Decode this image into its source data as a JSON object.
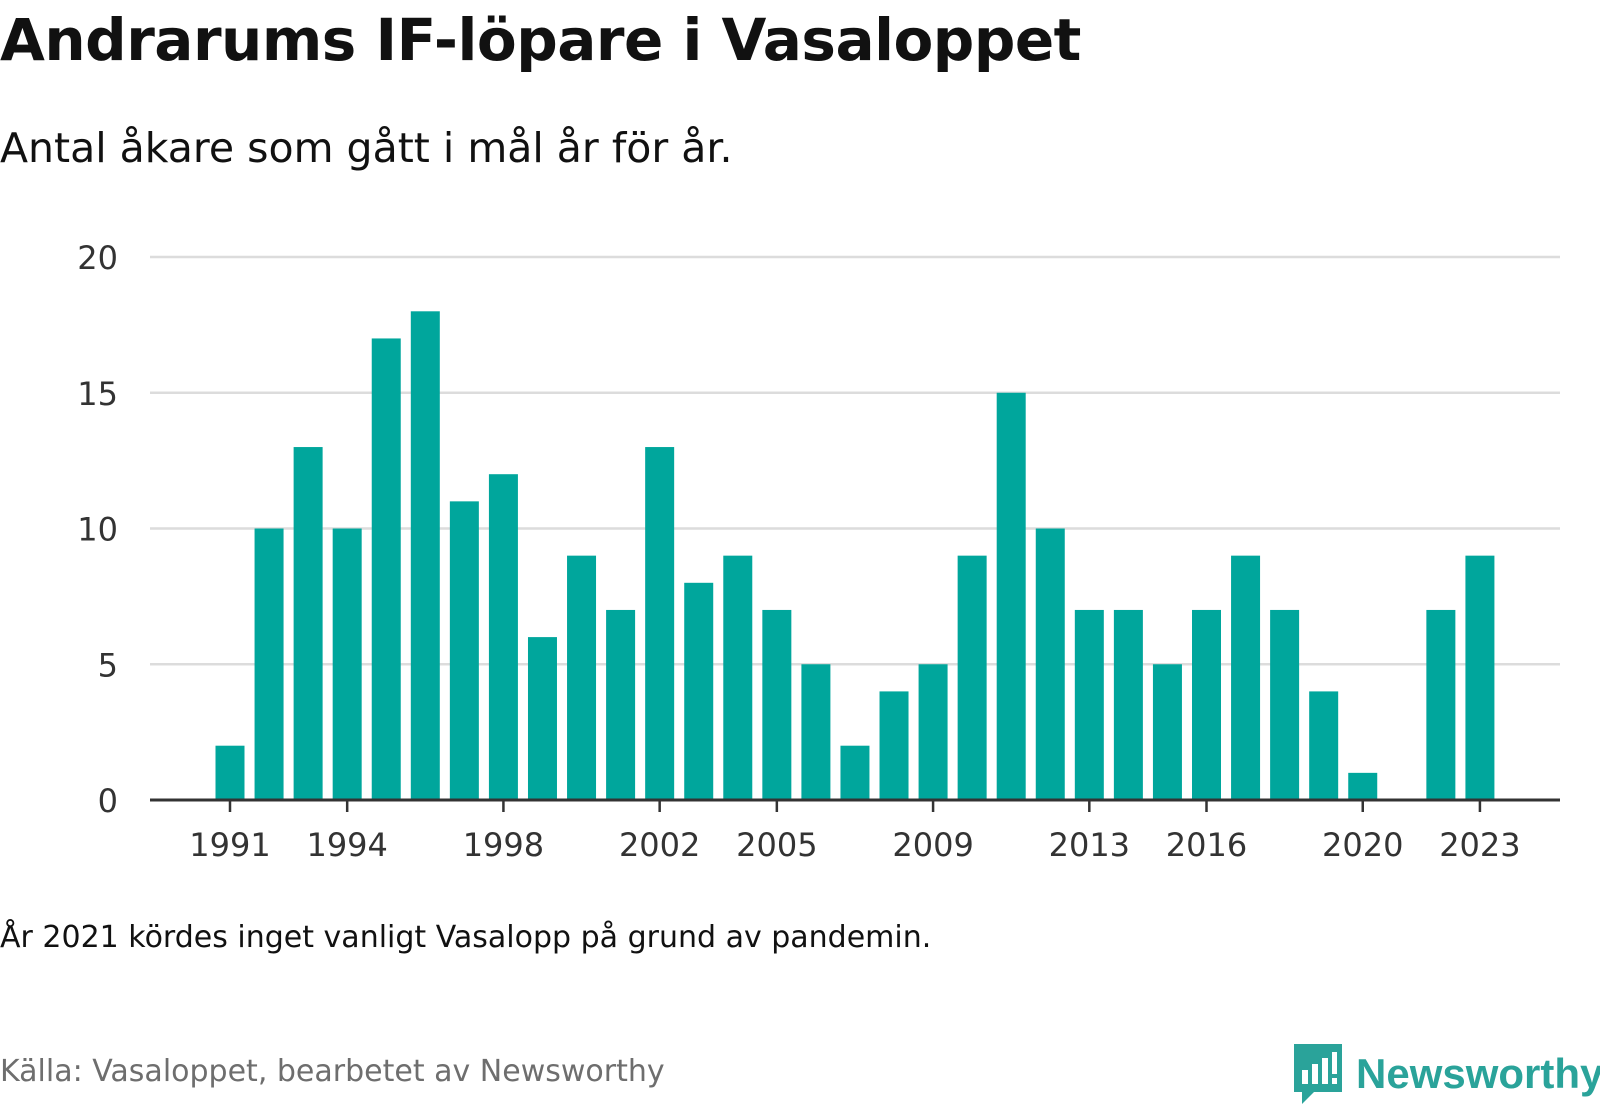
{
  "header": {
    "title": "Andrarums IF-löpare i Vasaloppet",
    "subtitle": "Antal åkare som gått i mål år för år."
  },
  "footer": {
    "note": "År 2021 kördes inget vanligt Vasalopp på grund av pandemin.",
    "source": "Källa: Vasaloppet, bearbetet av Newsworthy",
    "brand": "Newsworthy",
    "brand_icon": "newsworthy-logo-icon"
  },
  "colors": {
    "bar": "#00a69c",
    "grid": "#dcdcdc",
    "axis": "#333333",
    "brand": "#2aa39a"
  },
  "chart_data": {
    "type": "bar",
    "title": "Andrarums IF-löpare i Vasaloppet",
    "subtitle": "Antal åkare som gått i mål år för år.",
    "xlabel": "",
    "ylabel": "",
    "ylim": [
      0,
      20
    ],
    "yticks": [
      0,
      5,
      10,
      15,
      20
    ],
    "xtick_labels": [
      "1991",
      "1994",
      "1998",
      "2002",
      "2005",
      "2009",
      "2013",
      "2016",
      "2020",
      "2023"
    ],
    "categories": [
      "1991",
      "1992",
      "1993",
      "1994",
      "1995",
      "1996",
      "1997",
      "1998",
      "1999",
      "2000",
      "2001",
      "2002",
      "2003",
      "2004",
      "2005",
      "2006",
      "2007",
      "2008",
      "2009",
      "2010",
      "2011",
      "2012",
      "2013",
      "2014",
      "2015",
      "2016",
      "2017",
      "2018",
      "2019",
      "2020",
      "2021",
      "2022",
      "2023"
    ],
    "values": [
      2,
      10,
      13,
      10,
      17,
      18,
      11,
      12,
      6,
      9,
      7,
      13,
      8,
      9,
      7,
      5,
      2,
      4,
      5,
      9,
      15,
      10,
      7,
      7,
      5,
      7,
      9,
      7,
      4,
      1,
      0,
      7,
      9
    ],
    "grid": true,
    "legend": "none"
  }
}
